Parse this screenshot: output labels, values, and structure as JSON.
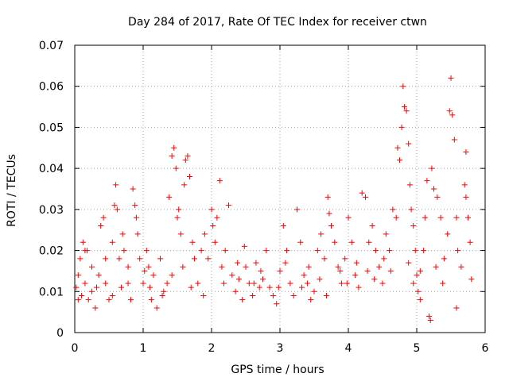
{
  "chart_data": {
    "type": "scatter",
    "title": "Day 284 of 2017, Rate Of TEC Index for receiver ctwn",
    "xlabel": "GPS time / hours",
    "ylabel": "ROTI / TECUs",
    "xlim": [
      0,
      6
    ],
    "ylim": [
      0,
      0.07
    ],
    "xticks": [
      "0",
      "1",
      "2",
      "3",
      "4",
      "5",
      "6"
    ],
    "yticks": [
      "0",
      "0.01",
      "0.02",
      "0.03",
      "0.04",
      "0.05",
      "0.06",
      "0.07"
    ],
    "grid": true,
    "marker": "+",
    "color": "#ff0000",
    "series": [
      {
        "name": "ROTI",
        "points": [
          [
            0.02,
            0.011
          ],
          [
            0.05,
            0.014
          ],
          [
            0.08,
            0.018
          ],
          [
            0.1,
            0.009
          ],
          [
            0.12,
            0.022
          ],
          [
            0.15,
            0.012
          ],
          [
            0.18,
            0.02
          ],
          [
            0.2,
            0.008
          ],
          [
            0.25,
            0.01
          ],
          [
            0.3,
            0.006
          ],
          [
            0.35,
            0.014
          ],
          [
            0.38,
            0.026
          ],
          [
            0.42,
            0.028
          ],
          [
            0.45,
            0.012
          ],
          [
            0.5,
            0.008
          ],
          [
            0.55,
            0.022
          ],
          [
            0.58,
            0.031
          ],
          [
            0.6,
            0.036
          ],
          [
            0.62,
            0.03
          ],
          [
            0.65,
            0.018
          ],
          [
            0.7,
            0.024
          ],
          [
            0.72,
            0.02
          ],
          [
            0.78,
            0.012
          ],
          [
            0.82,
            0.008
          ],
          [
            0.85,
            0.035
          ],
          [
            0.88,
            0.031
          ],
          [
            0.9,
            0.028
          ],
          [
            0.92,
            0.024
          ],
          [
            0.95,
            0.018
          ],
          [
            1.0,
            0.012
          ],
          [
            1.05,
            0.02
          ],
          [
            1.08,
            0.016
          ],
          [
            1.12,
            0.008
          ],
          [
            1.15,
            0.014
          ],
          [
            1.2,
            0.006
          ],
          [
            1.25,
            0.018
          ],
          [
            1.3,
            0.01
          ],
          [
            1.35,
            0.012
          ],
          [
            1.38,
            0.033
          ],
          [
            1.42,
            0.043
          ],
          [
            1.45,
            0.045
          ],
          [
            1.48,
            0.04
          ],
          [
            1.5,
            0.028
          ],
          [
            1.52,
            0.03
          ],
          [
            1.55,
            0.024
          ],
          [
            1.58,
            0.016
          ],
          [
            1.6,
            0.036
          ],
          [
            1.62,
            0.042
          ],
          [
            1.65,
            0.043
          ],
          [
            1.68,
            0.038
          ],
          [
            1.72,
            0.022
          ],
          [
            1.75,
            0.018
          ],
          [
            1.8,
            0.012
          ],
          [
            1.85,
            0.02
          ],
          [
            1.9,
            0.024
          ],
          [
            1.95,
            0.018
          ],
          [
            2.0,
            0.03
          ],
          [
            2.02,
            0.026
          ],
          [
            2.05,
            0.022
          ],
          [
            2.08,
            0.028
          ],
          [
            2.12,
            0.037
          ],
          [
            2.15,
            0.016
          ],
          [
            2.2,
            0.02
          ],
          [
            2.25,
            0.031
          ],
          [
            2.3,
            0.014
          ],
          [
            2.35,
            0.01
          ],
          [
            2.4,
            0.013
          ],
          [
            2.45,
            0.008
          ],
          [
            2.5,
            0.016
          ],
          [
            2.55,
            0.012
          ],
          [
            2.6,
            0.009
          ],
          [
            2.65,
            0.017
          ],
          [
            2.7,
            0.011
          ],
          [
            2.75,
            0.013
          ],
          [
            2.8,
            0.02
          ],
          [
            2.85,
            0.011
          ],
          [
            2.9,
            0.009
          ],
          [
            2.95,
            0.007
          ],
          [
            3.0,
            0.015
          ],
          [
            3.05,
            0.026
          ],
          [
            3.1,
            0.02
          ],
          [
            3.15,
            0.012
          ],
          [
            3.2,
            0.009
          ],
          [
            3.25,
            0.03
          ],
          [
            3.3,
            0.022
          ],
          [
            3.35,
            0.014
          ],
          [
            3.4,
            0.012
          ],
          [
            3.45,
            0.008
          ],
          [
            3.5,
            0.01
          ],
          [
            3.55,
            0.02
          ],
          [
            3.6,
            0.024
          ],
          [
            3.65,
            0.018
          ],
          [
            3.7,
            0.033
          ],
          [
            3.72,
            0.029
          ],
          [
            3.75,
            0.026
          ],
          [
            3.8,
            0.022
          ],
          [
            3.85,
            0.016
          ],
          [
            3.9,
            0.012
          ],
          [
            3.95,
            0.018
          ],
          [
            4.0,
            0.028
          ],
          [
            4.05,
            0.022
          ],
          [
            4.1,
            0.014
          ],
          [
            4.15,
            0.011
          ],
          [
            4.2,
            0.034
          ],
          [
            4.25,
            0.033
          ],
          [
            4.3,
            0.022
          ],
          [
            4.35,
            0.026
          ],
          [
            4.4,
            0.02
          ],
          [
            4.45,
            0.016
          ],
          [
            4.5,
            0.012
          ],
          [
            4.55,
            0.024
          ],
          [
            4.6,
            0.02
          ],
          [
            4.65,
            0.03
          ],
          [
            4.7,
            0.028
          ],
          [
            4.72,
            0.045
          ],
          [
            4.75,
            0.042
          ],
          [
            4.78,
            0.05
          ],
          [
            4.8,
            0.06
          ],
          [
            4.82,
            0.055
          ],
          [
            4.85,
            0.054
          ],
          [
            4.88,
            0.046
          ],
          [
            4.9,
            0.036
          ],
          [
            4.92,
            0.03
          ],
          [
            4.95,
            0.026
          ],
          [
            4.98,
            0.02
          ],
          [
            5.0,
            0.014
          ],
          [
            5.02,
            0.01
          ],
          [
            5.05,
            0.008
          ],
          [
            5.1,
            0.02
          ],
          [
            5.12,
            0.028
          ],
          [
            5.15,
            0.037
          ],
          [
            5.18,
            0.004
          ],
          [
            5.2,
            0.003
          ],
          [
            5.22,
            0.04
          ],
          [
            5.25,
            0.035
          ],
          [
            5.3,
            0.033
          ],
          [
            5.35,
            0.028
          ],
          [
            5.4,
            0.018
          ],
          [
            5.45,
            0.024
          ],
          [
            5.48,
            0.054
          ],
          [
            5.5,
            0.062
          ],
          [
            5.52,
            0.053
          ],
          [
            5.55,
            0.047
          ],
          [
            5.58,
            0.028
          ],
          [
            5.6,
            0.02
          ],
          [
            5.65,
            0.016
          ],
          [
            5.7,
            0.036
          ],
          [
            5.72,
            0.033
          ],
          [
            5.75,
            0.028
          ],
          [
            5.78,
            0.022
          ],
          [
            5.8,
            0.013
          ],
          [
            5.72,
            0.044
          ],
          [
            0.15,
            0.02
          ],
          [
            0.25,
            0.016
          ],
          [
            0.45,
            0.018
          ],
          [
            0.68,
            0.011
          ],
          [
            1.02,
            0.015
          ],
          [
            1.28,
            0.009
          ],
          [
            1.7,
            0.011
          ],
          [
            2.18,
            0.012
          ],
          [
            2.48,
            0.021
          ],
          [
            2.72,
            0.015
          ],
          [
            3.08,
            0.017
          ],
          [
            3.32,
            0.011
          ],
          [
            3.58,
            0.013
          ],
          [
            3.88,
            0.015
          ],
          [
            4.12,
            0.017
          ],
          [
            4.38,
            0.013
          ],
          [
            4.62,
            0.015
          ],
          [
            4.95,
            0.012
          ],
          [
            5.38,
            0.012
          ],
          [
            5.58,
            0.006
          ],
          [
            0.05,
            0.008
          ],
          [
            0.32,
            0.011
          ],
          [
            0.55,
            0.009
          ],
          [
            0.78,
            0.016
          ],
          [
            1.1,
            0.011
          ],
          [
            1.42,
            0.014
          ],
          [
            1.88,
            0.009
          ],
          [
            2.38,
            0.017
          ],
          [
            2.62,
            0.012
          ],
          [
            2.98,
            0.011
          ],
          [
            3.42,
            0.016
          ],
          [
            3.68,
            0.009
          ],
          [
            3.98,
            0.012
          ],
          [
            4.28,
            0.015
          ],
          [
            4.52,
            0.018
          ],
          [
            4.88,
            0.017
          ],
          [
            5.05,
            0.015
          ],
          [
            5.28,
            0.016
          ]
        ]
      }
    ]
  }
}
